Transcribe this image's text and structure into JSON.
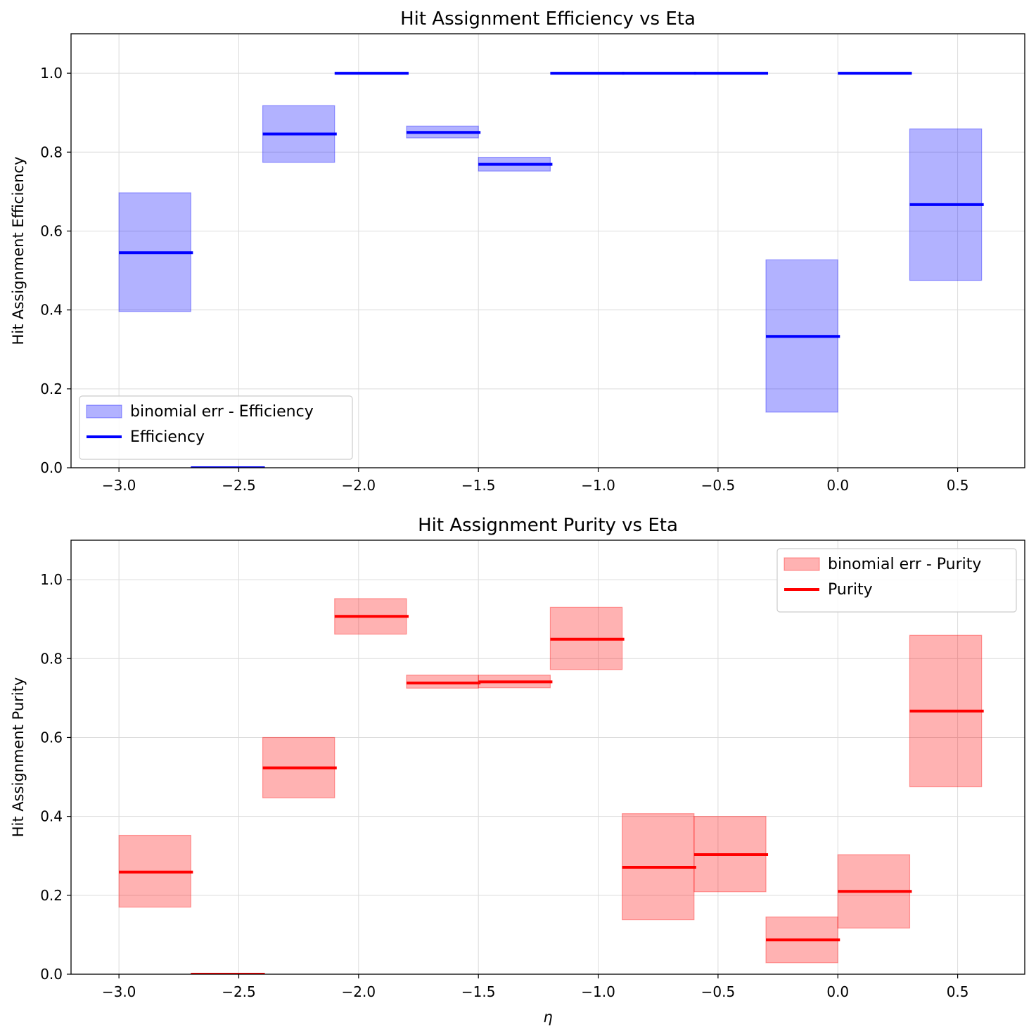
{
  "chart_data": [
    {
      "type": "step",
      "title": "Hit Assignment Efficiency vs Eta",
      "xlabel": "",
      "ylabel": "Hit Assignment Efficiency",
      "xlim": [
        -3.2,
        0.78
      ],
      "ylim": [
        0.0,
        1.1
      ],
      "xticks": [
        -3.0,
        -2.5,
        -2.0,
        -1.5,
        -1.0,
        -0.5,
        0.0,
        0.5
      ],
      "xtick_labels": [
        "−3.0",
        "−2.5",
        "−2.0",
        "−1.5",
        "−1.0",
        "−0.5",
        "0.0",
        "0.5"
      ],
      "yticks": [
        0.0,
        0.2,
        0.4,
        0.6,
        0.8,
        1.0
      ],
      "ytick_labels": [
        "0.0",
        "0.2",
        "0.4",
        "0.6",
        "0.8",
        "1.0"
      ],
      "grid": true,
      "legend_position": "lower-left",
      "color": "#0000ff",
      "band_color": "#0000ff",
      "series_label": "Efficiency",
      "band_label": "binomial err - Efficiency",
      "bin_edges": [
        -3.0,
        -2.7,
        -2.4,
        -2.1,
        -1.8,
        -1.5,
        -1.2,
        -0.9,
        -0.6,
        -0.3,
        0.0,
        0.3,
        0.6
      ],
      "values": [
        0.545,
        0.0,
        0.846,
        1.0,
        0.85,
        0.769,
        1.0,
        1.0,
        1.0,
        0.333,
        1.0,
        0.667
      ],
      "err_low": [
        0.396,
        0.0,
        0.774,
        1.0,
        0.836,
        0.752,
        1.0,
        1.0,
        1.0,
        0.141,
        1.0,
        0.475
      ],
      "err_high": [
        0.697,
        0.0,
        0.918,
        1.0,
        0.866,
        0.787,
        1.0,
        1.0,
        1.0,
        0.527,
        1.0,
        0.859
      ]
    },
    {
      "type": "step",
      "title": "Hit Assignment Purity vs Eta",
      "xlabel": "η",
      "ylabel": "Hit Assignment Purity",
      "xlim": [
        -3.2,
        0.78
      ],
      "ylim": [
        0.0,
        1.1
      ],
      "xticks": [
        -3.0,
        -2.5,
        -2.0,
        -1.5,
        -1.0,
        -0.5,
        0.0,
        0.5
      ],
      "xtick_labels": [
        "−3.0",
        "−2.5",
        "−2.0",
        "−1.5",
        "−1.0",
        "−0.5",
        "0.0",
        "0.5"
      ],
      "yticks": [
        0.0,
        0.2,
        0.4,
        0.6,
        0.8,
        1.0
      ],
      "ytick_labels": [
        "0.0",
        "0.2",
        "0.4",
        "0.6",
        "0.8",
        "1.0"
      ],
      "grid": true,
      "legend_position": "upper-right",
      "color": "#ff0000",
      "band_color": "#ff0000",
      "series_label": "Purity",
      "band_label": "binomial err - Purity",
      "bin_edges": [
        -3.0,
        -2.7,
        -2.4,
        -2.1,
        -1.8,
        -1.5,
        -1.2,
        -0.9,
        -0.6,
        -0.3,
        0.0,
        0.3,
        0.6
      ],
      "values": [
        0.259,
        0.0,
        0.523,
        0.907,
        0.738,
        0.741,
        0.849,
        0.271,
        0.303,
        0.087,
        0.21,
        0.667
      ],
      "err_low": [
        0.17,
        0.0,
        0.447,
        0.862,
        0.725,
        0.726,
        0.772,
        0.138,
        0.209,
        0.029,
        0.117,
        0.475
      ],
      "err_high": [
        0.352,
        0.0,
        0.6,
        0.952,
        0.758,
        0.758,
        0.93,
        0.407,
        0.4,
        0.145,
        0.303,
        0.859
      ]
    }
  ]
}
